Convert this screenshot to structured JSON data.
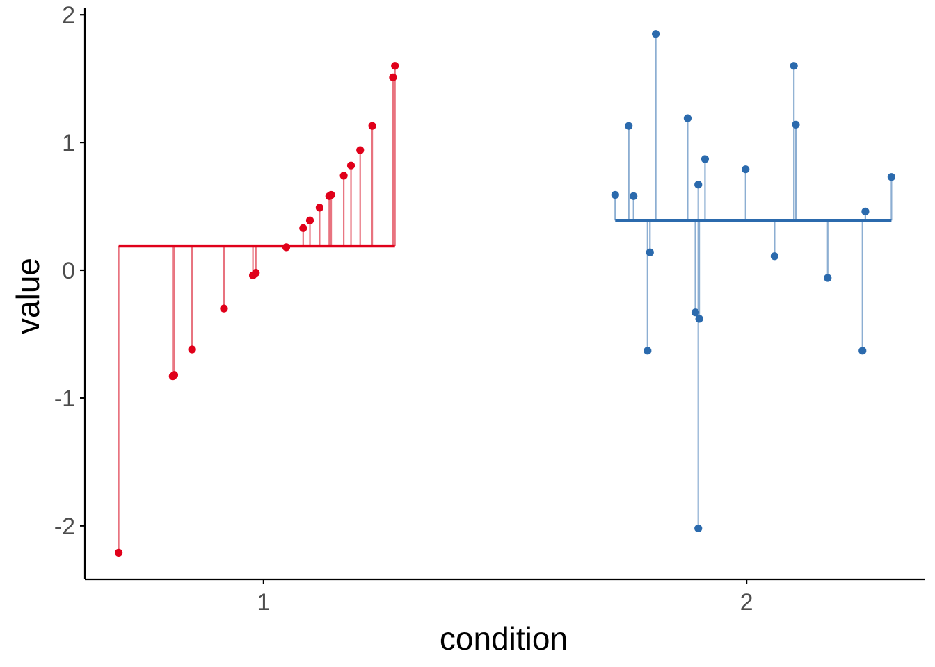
{
  "chart_data": {
    "type": "scatter",
    "xlabel": "condition",
    "ylabel": "value",
    "x_ticks": [
      "1",
      "2"
    ],
    "y_ticks": [
      -2,
      -1,
      0,
      1,
      2
    ],
    "xlim": [
      0.63,
      2.37
    ],
    "ylim": [
      -2.42,
      2.05
    ],
    "grid": false,
    "legend": "none",
    "series": [
      {
        "name": "1",
        "color": "#E0001A",
        "stem_color": "#E8737F",
        "mean": 0.19,
        "x": [
          0.7,
          0.812,
          0.815,
          0.852,
          0.918,
          0.978,
          0.984,
          1.047,
          1.082,
          1.096,
          1.116,
          1.136,
          1.14,
          1.166,
          1.181,
          1.2,
          1.225,
          1.268,
          1.272
        ],
        "y": [
          -2.21,
          -0.83,
          -0.82,
          -0.62,
          -0.3,
          -0.04,
          -0.02,
          0.18,
          0.33,
          0.39,
          0.49,
          0.58,
          0.59,
          0.74,
          0.82,
          0.94,
          1.13,
          1.51,
          1.6
        ]
      },
      {
        "name": "2",
        "color": "#2B6AAD",
        "stem_color": "#8CAED2",
        "mean": 0.39,
        "x": [
          1.728,
          1.756,
          1.766,
          1.795,
          1.8,
          1.812,
          1.878,
          1.894,
          1.9,
          1.9,
          1.902,
          1.914,
          1.998,
          2.058,
          2.098,
          2.102,
          2.168,
          2.24,
          2.246,
          2.3
        ],
        "y": [
          0.59,
          1.13,
          0.58,
          -0.63,
          0.14,
          1.85,
          1.19,
          -0.33,
          0.67,
          -2.02,
          -0.38,
          0.87,
          0.79,
          0.11,
          1.6,
          1.14,
          -0.06,
          -0.63,
          0.46,
          0.73
        ]
      }
    ]
  }
}
